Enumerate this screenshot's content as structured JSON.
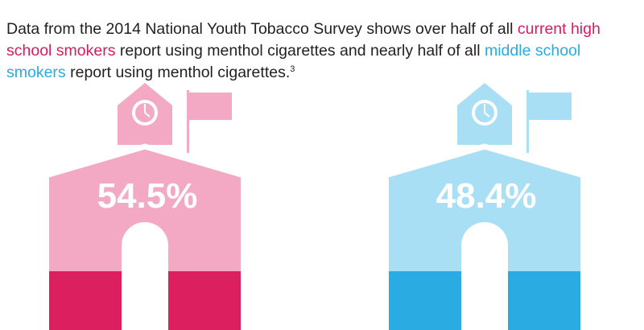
{
  "headline": {
    "part1": "Data from the 2014 National Youth Tobacco Survey shows over half of all ",
    "highlight1": "current high school smokers",
    "part2": " report using menthol cigarettes and nearly half of all ",
    "highlight2": "middle school smokers",
    "part3": " report using menthol cigarettes.",
    "footnote": "3"
  },
  "chart_data": {
    "type": "bar",
    "categories": [
      "current high school smokers",
      "middle school smokers"
    ],
    "values": [
      54.5,
      48.4
    ],
    "unit": "%",
    "value_labels": [
      "54.5%",
      "48.4%"
    ],
    "colors": [
      {
        "light": "#f3a9c3",
        "dark": "#dc1f5f"
      },
      {
        "light": "#a9dff4",
        "dark": "#2aace3"
      }
    ]
  }
}
